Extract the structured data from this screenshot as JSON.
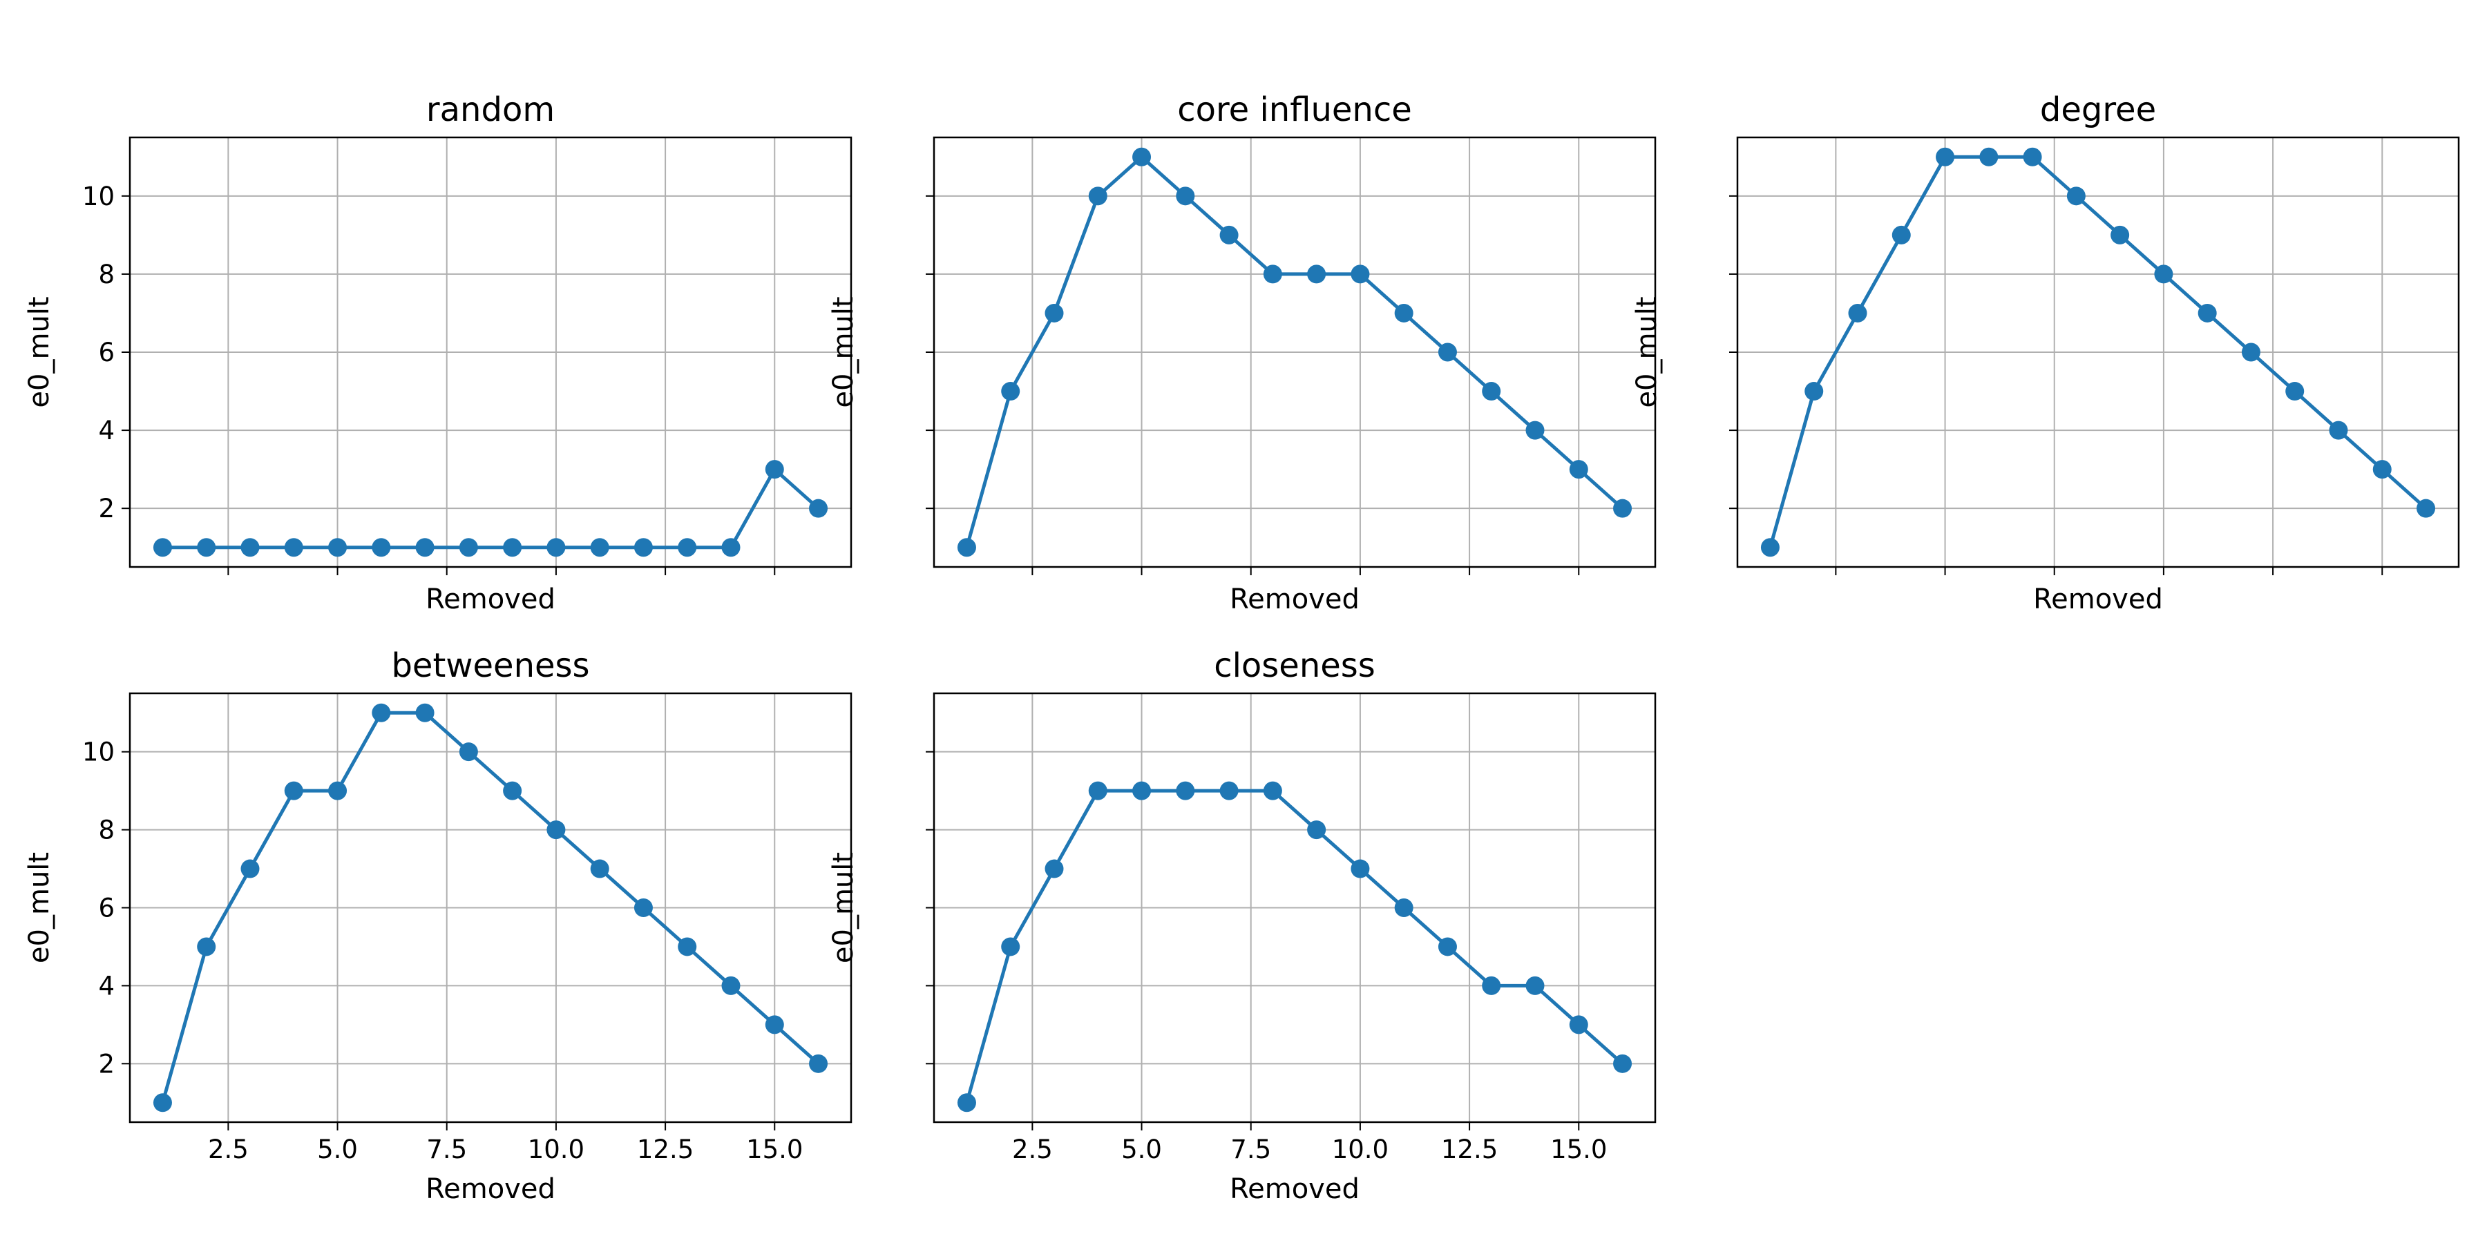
{
  "chart_data": [
    {
      "type": "line",
      "title": "random",
      "xlabel": "Removed",
      "ylabel": "e0_mult",
      "x": [
        1,
        2,
        3,
        4,
        5,
        6,
        7,
        8,
        9,
        10,
        11,
        12,
        13,
        14,
        15,
        16
      ],
      "series": [
        {
          "values": [
            1,
            1,
            1,
            1,
            1,
            1,
            1,
            1,
            1,
            1,
            1,
            1,
            1,
            1,
            3,
            2
          ]
        }
      ],
      "xticks": [
        "2.5",
        "5.0",
        "7.5",
        "10.0",
        "12.5",
        "15.0"
      ],
      "yticks": [
        "2",
        "4",
        "6",
        "8",
        "10"
      ],
      "show_xtick_labels": false,
      "show_ytick_labels": true,
      "grid": true,
      "xlim": [
        0.25,
        16.75
      ],
      "ylim": [
        0.5,
        11.5
      ],
      "color": "#1f77b4",
      "marker": "circle"
    },
    {
      "type": "line",
      "title": "core influence",
      "xlabel": "Removed",
      "ylabel": "e0_mult",
      "x": [
        1,
        2,
        3,
        4,
        5,
        6,
        7,
        8,
        9,
        10,
        11,
        12,
        13,
        14,
        15,
        16
      ],
      "series": [
        {
          "values": [
            1,
            5,
            7,
            10,
            11,
            10,
            9,
            8,
            8,
            8,
            7,
            6,
            5,
            4,
            3,
            2
          ]
        }
      ],
      "xticks": [
        "2.5",
        "5.0",
        "7.5",
        "10.0",
        "12.5",
        "15.0"
      ],
      "yticks": [
        "2",
        "4",
        "6",
        "8",
        "10"
      ],
      "show_xtick_labels": false,
      "show_ytick_labels": false,
      "grid": true,
      "xlim": [
        0.25,
        16.75
      ],
      "ylim": [
        0.5,
        11.5
      ],
      "color": "#1f77b4",
      "marker": "circle"
    },
    {
      "type": "line",
      "title": "degree",
      "xlabel": "Removed",
      "ylabel": "e0_mult",
      "x": [
        1,
        2,
        3,
        4,
        5,
        6,
        7,
        8,
        9,
        10,
        11,
        12,
        13,
        14,
        15,
        16
      ],
      "series": [
        {
          "values": [
            1,
            5,
            7,
            9,
            11,
            11,
            11,
            10,
            9,
            8,
            7,
            6,
            5,
            4,
            3,
            2
          ]
        }
      ],
      "xticks": [
        "2.5",
        "5.0",
        "7.5",
        "10.0",
        "12.5",
        "15.0"
      ],
      "yticks": [
        "2",
        "4",
        "6",
        "8",
        "10"
      ],
      "show_xtick_labels": false,
      "show_ytick_labels": false,
      "grid": true,
      "xlim": [
        0.25,
        16.75
      ],
      "ylim": [
        0.5,
        11.5
      ],
      "color": "#1f77b4",
      "marker": "circle"
    },
    {
      "type": "line",
      "title": "betweeness",
      "xlabel": "Removed",
      "ylabel": "e0_mult",
      "x": [
        1,
        2,
        3,
        4,
        5,
        6,
        7,
        8,
        9,
        10,
        11,
        12,
        13,
        14,
        15,
        16
      ],
      "series": [
        {
          "values": [
            1,
            5,
            7,
            9,
            9,
            11,
            11,
            10,
            9,
            8,
            7,
            6,
            5,
            4,
            3,
            2
          ]
        }
      ],
      "xticks": [
        "2.5",
        "5.0",
        "7.5",
        "10.0",
        "12.5",
        "15.0"
      ],
      "yticks": [
        "2",
        "4",
        "6",
        "8",
        "10"
      ],
      "show_xtick_labels": true,
      "show_ytick_labels": true,
      "grid": true,
      "xlim": [
        0.25,
        16.75
      ],
      "ylim": [
        0.5,
        11.5
      ],
      "color": "#1f77b4",
      "marker": "circle"
    },
    {
      "type": "line",
      "title": "closeness",
      "xlabel": "Removed",
      "ylabel": "e0_mult",
      "x": [
        1,
        2,
        3,
        4,
        5,
        6,
        7,
        8,
        9,
        10,
        11,
        12,
        13,
        14,
        15,
        16
      ],
      "series": [
        {
          "values": [
            1,
            5,
            7,
            9,
            9,
            9,
            9,
            9,
            8,
            7,
            6,
            5,
            4,
            4,
            3,
            2
          ]
        }
      ],
      "xticks": [
        "2.5",
        "5.0",
        "7.5",
        "10.0",
        "12.5",
        "15.0"
      ],
      "yticks": [
        "2",
        "4",
        "6",
        "8",
        "10"
      ],
      "show_xtick_labels": true,
      "show_ytick_labels": false,
      "grid": true,
      "xlim": [
        0.25,
        16.75
      ],
      "ylim": [
        0.5,
        11.5
      ],
      "color": "#1f77b4",
      "marker": "circle"
    }
  ]
}
